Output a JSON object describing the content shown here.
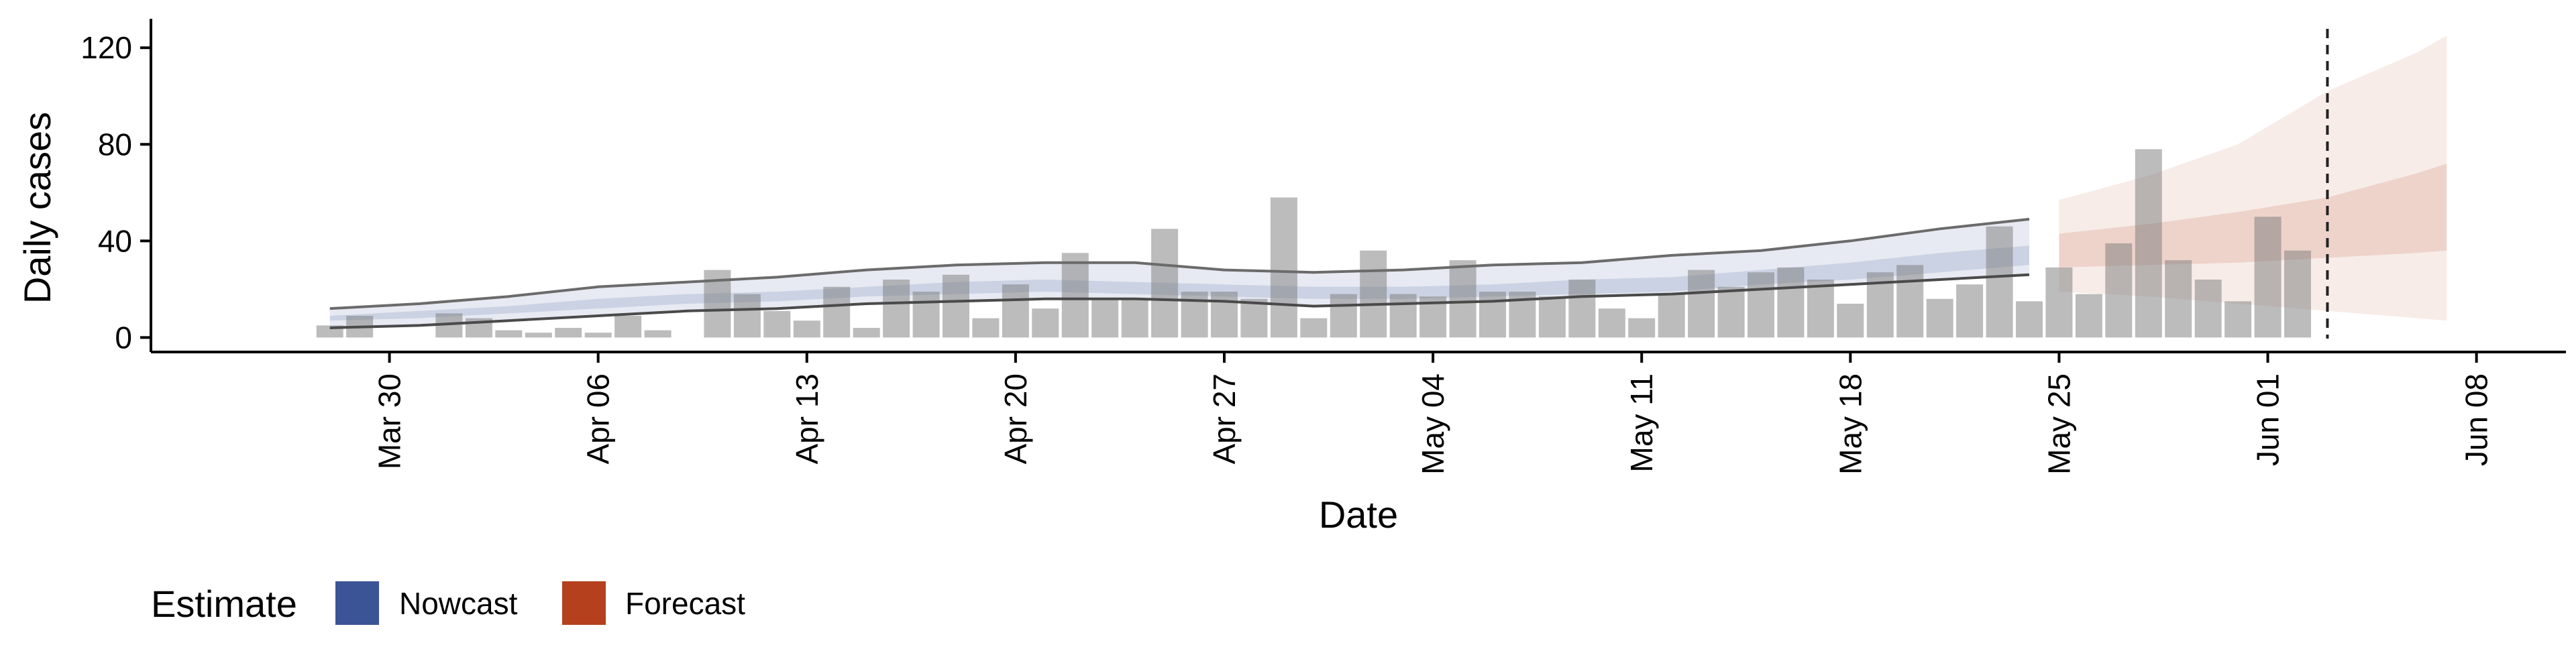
{
  "chart_data": {
    "type": "bar",
    "title": "",
    "xlabel": "Date",
    "ylabel": "Daily cases",
    "ylim": [
      -6,
      132
    ],
    "yticks": [
      0,
      40,
      80,
      120
    ],
    "x_domain": [
      "2020-03-22",
      "2020-06-11"
    ],
    "xticks": [
      {
        "date": "2020-03-30",
        "label": "Mar 30"
      },
      {
        "date": "2020-04-06",
        "label": "Apr 06"
      },
      {
        "date": "2020-04-13",
        "label": "Apr 13"
      },
      {
        "date": "2020-04-20",
        "label": "Apr 20"
      },
      {
        "date": "2020-04-27",
        "label": "Apr 27"
      },
      {
        "date": "2020-05-04",
        "label": "May 04"
      },
      {
        "date": "2020-05-11",
        "label": "May 11"
      },
      {
        "date": "2020-05-18",
        "label": "May 18"
      },
      {
        "date": "2020-05-25",
        "label": "May 25"
      },
      {
        "date": "2020-06-01",
        "label": "Jun 01"
      },
      {
        "date": "2020-06-08",
        "label": "Jun 08"
      }
    ],
    "grid": false,
    "vline_date": "2020-06-03",
    "reported_cases": {
      "dates": [
        "2020-03-28",
        "2020-03-29",
        "2020-03-30",
        "2020-03-31",
        "2020-04-01",
        "2020-04-02",
        "2020-04-03",
        "2020-04-04",
        "2020-04-05",
        "2020-04-06",
        "2020-04-07",
        "2020-04-08",
        "2020-04-09",
        "2020-04-10",
        "2020-04-11",
        "2020-04-12",
        "2020-04-13",
        "2020-04-14",
        "2020-04-15",
        "2020-04-16",
        "2020-04-17",
        "2020-04-18",
        "2020-04-19",
        "2020-04-20",
        "2020-04-21",
        "2020-04-22",
        "2020-04-23",
        "2020-04-24",
        "2020-04-25",
        "2020-04-26",
        "2020-04-27",
        "2020-04-28",
        "2020-04-29",
        "2020-04-30",
        "2020-05-01",
        "2020-05-02",
        "2020-05-03",
        "2020-05-04",
        "2020-05-05",
        "2020-05-06",
        "2020-05-07",
        "2020-05-08",
        "2020-05-09",
        "2020-05-10",
        "2020-05-11",
        "2020-05-12",
        "2020-05-13",
        "2020-05-14",
        "2020-05-15",
        "2020-05-16",
        "2020-05-17",
        "2020-05-18",
        "2020-05-19",
        "2020-05-20",
        "2020-05-21",
        "2020-05-22",
        "2020-05-23",
        "2020-05-24",
        "2020-05-25",
        "2020-05-26",
        "2020-05-27",
        "2020-05-28",
        "2020-05-29",
        "2020-05-30",
        "2020-05-31",
        "2020-06-01",
        "2020-06-02",
        "2020-06-03"
      ],
      "values": [
        5,
        9,
        0,
        0,
        10,
        8,
        3,
        2,
        4,
        2,
        9,
        3,
        0,
        28,
        18,
        11,
        7,
        21,
        4,
        24,
        19,
        26,
        8,
        22,
        12,
        35,
        16,
        16,
        45,
        19,
        19,
        16,
        58,
        8,
        18,
        36,
        18,
        17,
        32,
        19,
        19,
        17,
        24,
        12,
        8,
        18,
        28,
        21,
        27,
        29,
        24,
        14,
        27,
        30,
        16,
        22,
        46,
        15,
        29,
        18,
        39,
        78,
        32,
        24,
        15,
        50,
        36,
        0
      ]
    },
    "series": [
      {
        "name": "Nowcast",
        "color": "#3A5496",
        "dates": [
          "2020-03-28",
          "2020-03-31",
          "2020-04-03",
          "2020-04-06",
          "2020-04-09",
          "2020-04-12",
          "2020-04-15",
          "2020-04-18",
          "2020-04-21",
          "2020-04-24",
          "2020-04-27",
          "2020-04-30",
          "2020-05-03",
          "2020-05-06",
          "2020-05-09",
          "2020-05-12",
          "2020-05-15",
          "2020-05-18",
          "2020-05-21",
          "2020-05-24"
        ],
        "upper_90": [
          12,
          14,
          17,
          21,
          23,
          25,
          28,
          30,
          31,
          31,
          28,
          27,
          28,
          30,
          31,
          34,
          36,
          40,
          45,
          49
        ],
        "upper_50": [
          9,
          11,
          13,
          16,
          18,
          19,
          21,
          23,
          24,
          23,
          22,
          21,
          21,
          22,
          24,
          25,
          28,
          31,
          35,
          38
        ],
        "lower_50": [
          7,
          8,
          10,
          12,
          14,
          15,
          17,
          18,
          19,
          18,
          17,
          16,
          16,
          17,
          18,
          19,
          22,
          24,
          27,
          30
        ],
        "lower_90": [
          4,
          5,
          7,
          9,
          11,
          12,
          14,
          15,
          16,
          16,
          15,
          13,
          14,
          15,
          17,
          18,
          20,
          22,
          24,
          26
        ]
      },
      {
        "name": "Forecast",
        "color": "#B5401D",
        "dates": [
          "2020-05-25",
          "2020-05-28",
          "2020-05-31",
          "2020-06-03",
          "2020-06-06",
          "2020-06-07"
        ],
        "upper_90": [
          57,
          67,
          80,
          102,
          118,
          125
        ],
        "upper_50": [
          43,
          47,
          52,
          58,
          68,
          72
        ],
        "lower_50": [
          29,
          30,
          31,
          33,
          35,
          36
        ],
        "lower_90": [
          19,
          17,
          14,
          11,
          8,
          7
        ]
      }
    ],
    "legend": {
      "position": "bottom-left",
      "title": "Estimate",
      "items": [
        {
          "label": "Nowcast",
          "color": "#3A5496"
        },
        {
          "label": "Forecast",
          "color": "#B5401D"
        }
      ]
    }
  }
}
